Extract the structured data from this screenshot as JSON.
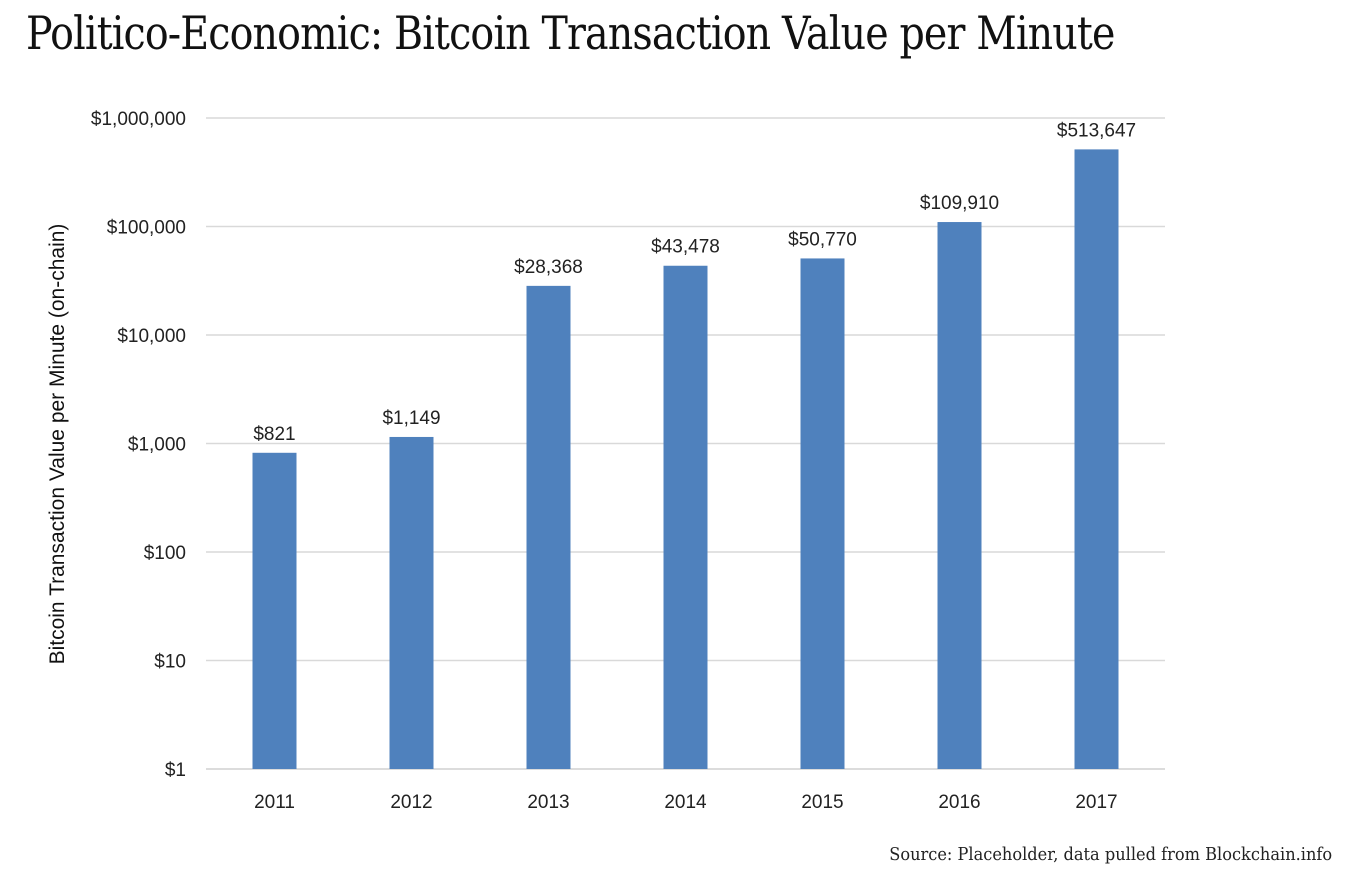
{
  "chart_data": {
    "type": "bar",
    "title": "Politico-Economic: Bitcoin Transaction Value per Minute",
    "source": "Source: Placeholder, data pulled from Blockchain.info",
    "xlabel": "",
    "ylabel": "Bitcoin Transaction Value per Minute (on-chain)",
    "yscale": "log",
    "ylim": [
      1,
      1000000
    ],
    "grid": true,
    "legend": "none",
    "bar_color": "#4f81bd",
    "categories": [
      "2011",
      "2012",
      "2013",
      "2014",
      "2015",
      "2016",
      "2017"
    ],
    "values": [
      821,
      1149,
      28368,
      43478,
      50770,
      109910,
      513647
    ],
    "data_labels": [
      "$821",
      "$1,149",
      "$28,368",
      "$43,478",
      "$50,770",
      "$109,910",
      "$513,647"
    ],
    "y_ticks": [
      {
        "value": 1,
        "label": "$1"
      },
      {
        "value": 10,
        "label": "$10"
      },
      {
        "value": 100,
        "label": "$100"
      },
      {
        "value": 1000,
        "label": "$1,000"
      },
      {
        "value": 10000,
        "label": "$10,000"
      },
      {
        "value": 100000,
        "label": "$100,000"
      },
      {
        "value": 1000000,
        "label": "$1,000,000"
      }
    ]
  }
}
